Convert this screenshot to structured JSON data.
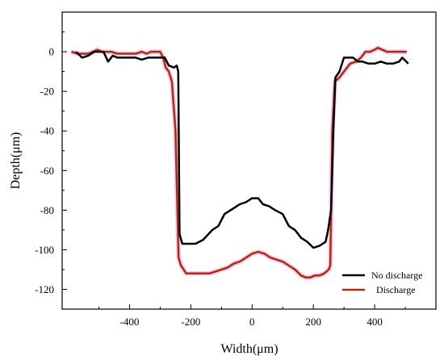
{
  "chart_data": {
    "type": "line",
    "title": "",
    "xlabel": "Width(μm)",
    "ylabel": "Depth(μm)",
    "xlim": [
      -620,
      600
    ],
    "ylim": [
      -130,
      20
    ],
    "x_ticks": [
      -400,
      -200,
      0,
      200,
      400
    ],
    "x_tick_labels": [
      "-400",
      "-200",
      "0",
      "200",
      "400"
    ],
    "y_ticks": [
      0,
      -20,
      -40,
      -60,
      -80,
      -100,
      -120
    ],
    "y_tick_labels": [
      "0",
      "-20",
      "-40",
      "-60",
      "-80",
      "-100",
      "-120"
    ],
    "grid": false,
    "legend_position": "bottom-right",
    "series": [
      {
        "name": "No discharge",
        "color": "#000000",
        "points": [
          [
            -575,
            0
          ],
          [
            -555,
            -3
          ],
          [
            -535,
            -2
          ],
          [
            -515,
            0
          ],
          [
            -500,
            0
          ],
          [
            -485,
            0
          ],
          [
            -470,
            -5
          ],
          [
            -455,
            -2
          ],
          [
            -440,
            -3
          ],
          [
            -420,
            -3
          ],
          [
            -400,
            -3
          ],
          [
            -380,
            -3
          ],
          [
            -360,
            -4
          ],
          [
            -340,
            -3
          ],
          [
            -320,
            -3
          ],
          [
            -300,
            -3
          ],
          [
            -285,
            -3
          ],
          [
            -272,
            -7
          ],
          [
            -255,
            -8
          ],
          [
            -246,
            -7
          ],
          [
            -241,
            -10
          ],
          [
            -237,
            -92
          ],
          [
            -228,
            -97
          ],
          [
            -205,
            -97
          ],
          [
            -185,
            -97
          ],
          [
            -160,
            -95
          ],
          [
            -130,
            -90
          ],
          [
            -110,
            -88
          ],
          [
            -90,
            -82
          ],
          [
            -60,
            -79
          ],
          [
            -40,
            -77
          ],
          [
            -20,
            -76
          ],
          [
            0,
            -74
          ],
          [
            20,
            -74
          ],
          [
            35,
            -77
          ],
          [
            55,
            -78
          ],
          [
            75,
            -80
          ],
          [
            100,
            -82
          ],
          [
            120,
            -88
          ],
          [
            140,
            -90
          ],
          [
            160,
            -94
          ],
          [
            180,
            -96
          ],
          [
            200,
            -99
          ],
          [
            220,
            -98
          ],
          [
            240,
            -96
          ],
          [
            248,
            -90
          ],
          [
            258,
            -80
          ],
          [
            265,
            -40
          ],
          [
            272,
            -13
          ],
          [
            285,
            -10
          ],
          [
            300,
            -3
          ],
          [
            315,
            -3
          ],
          [
            330,
            -3
          ],
          [
            345,
            -5
          ],
          [
            360,
            -5
          ],
          [
            380,
            -6
          ],
          [
            400,
            -6
          ],
          [
            420,
            -5
          ],
          [
            440,
            -6
          ],
          [
            460,
            -6
          ],
          [
            480,
            -5
          ],
          [
            490,
            -3
          ],
          [
            510,
            -6
          ]
        ]
      },
      {
        "name": "Discharge",
        "color": "#b02a10",
        "points": [
          [
            -590,
            0
          ],
          [
            -570,
            -1
          ],
          [
            -550,
            -1
          ],
          [
            -535,
            -1
          ],
          [
            -520,
            0
          ],
          [
            -505,
            1
          ],
          [
            -490,
            0
          ],
          [
            -475,
            0
          ],
          [
            -460,
            0
          ],
          [
            -440,
            -1
          ],
          [
            -420,
            -1
          ],
          [
            -400,
            -1
          ],
          [
            -380,
            -1
          ],
          [
            -360,
            0
          ],
          [
            -345,
            -1
          ],
          [
            -330,
            0
          ],
          [
            -315,
            0
          ],
          [
            -300,
            0
          ],
          [
            -290,
            -3
          ],
          [
            -282,
            -8
          ],
          [
            -272,
            -10
          ],
          [
            -262,
            -15
          ],
          [
            -250,
            -40
          ],
          [
            -240,
            -104
          ],
          [
            -232,
            -108
          ],
          [
            -215,
            -112
          ],
          [
            -200,
            -112
          ],
          [
            -180,
            -112
          ],
          [
            -160,
            -112
          ],
          [
            -140,
            -112
          ],
          [
            -120,
            -111
          ],
          [
            -100,
            -110
          ],
          [
            -80,
            -109
          ],
          [
            -60,
            -107
          ],
          [
            -40,
            -106
          ],
          [
            -20,
            -104
          ],
          [
            0,
            -102
          ],
          [
            20,
            -101
          ],
          [
            40,
            -102
          ],
          [
            60,
            -104
          ],
          [
            80,
            -105
          ],
          [
            100,
            -106
          ],
          [
            120,
            -108
          ],
          [
            140,
            -110
          ],
          [
            160,
            -113
          ],
          [
            175,
            -114
          ],
          [
            190,
            -114
          ],
          [
            205,
            -113
          ],
          [
            220,
            -113
          ],
          [
            235,
            -112
          ],
          [
            250,
            -110
          ],
          [
            255,
            -108
          ],
          [
            262,
            -40
          ],
          [
            270,
            -15
          ],
          [
            285,
            -13
          ],
          [
            300,
            -10
          ],
          [
            320,
            -6
          ],
          [
            340,
            -5
          ],
          [
            355,
            -3
          ],
          [
            370,
            0
          ],
          [
            385,
            0
          ],
          [
            400,
            1
          ],
          [
            410,
            2
          ],
          [
            425,
            1
          ],
          [
            440,
            0
          ],
          [
            460,
            0
          ],
          [
            480,
            0
          ],
          [
            505,
            0
          ]
        ]
      }
    ]
  }
}
